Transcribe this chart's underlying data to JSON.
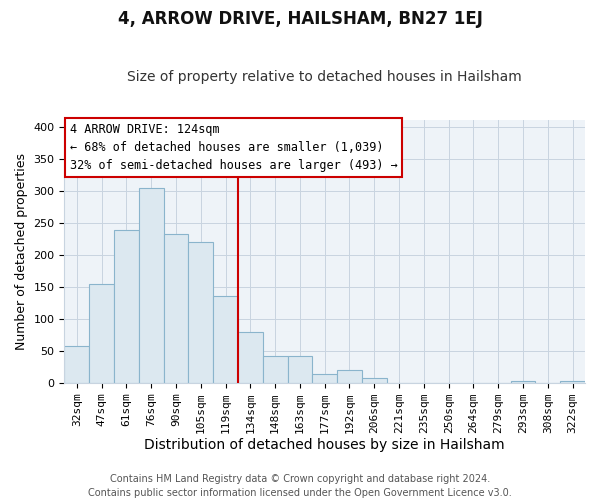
{
  "title": "4, ARROW DRIVE, HAILSHAM, BN27 1EJ",
  "subtitle": "Size of property relative to detached houses in Hailsham",
  "xlabel": "Distribution of detached houses by size in Hailsham",
  "ylabel": "Number of detached properties",
  "bar_labels": [
    "32sqm",
    "47sqm",
    "61sqm",
    "76sqm",
    "90sqm",
    "105sqm",
    "119sqm",
    "134sqm",
    "148sqm",
    "163sqm",
    "177sqm",
    "192sqm",
    "206sqm",
    "221sqm",
    "235sqm",
    "250sqm",
    "264sqm",
    "279sqm",
    "293sqm",
    "308sqm",
    "322sqm"
  ],
  "bar_heights": [
    57,
    155,
    238,
    305,
    233,
    220,
    135,
    79,
    41,
    42,
    14,
    20,
    7,
    0,
    0,
    0,
    0,
    0,
    3,
    0,
    3
  ],
  "bar_color": "#dce8f0",
  "bar_edge_color": "#8ab4cc",
  "vline_color": "#cc0000",
  "ylim": [
    0,
    410
  ],
  "yticks": [
    0,
    50,
    100,
    150,
    200,
    250,
    300,
    350,
    400
  ],
  "annotation_title": "4 ARROW DRIVE: 124sqm",
  "annotation_line1": "← 68% of detached houses are smaller (1,039)",
  "annotation_line2": "32% of semi-detached houses are larger (493) →",
  "annotation_box_color": "#ffffff",
  "annotation_box_edge": "#cc0000",
  "footer_line1": "Contains HM Land Registry data © Crown copyright and database right 2024.",
  "footer_line2": "Contains public sector information licensed under the Open Government Licence v3.0.",
  "title_fontsize": 12,
  "subtitle_fontsize": 10,
  "xlabel_fontsize": 10,
  "ylabel_fontsize": 9,
  "tick_fontsize": 8,
  "footer_fontsize": 7,
  "axes_bg_color": "#eef3f8",
  "fig_bg_color": "#ffffff"
}
